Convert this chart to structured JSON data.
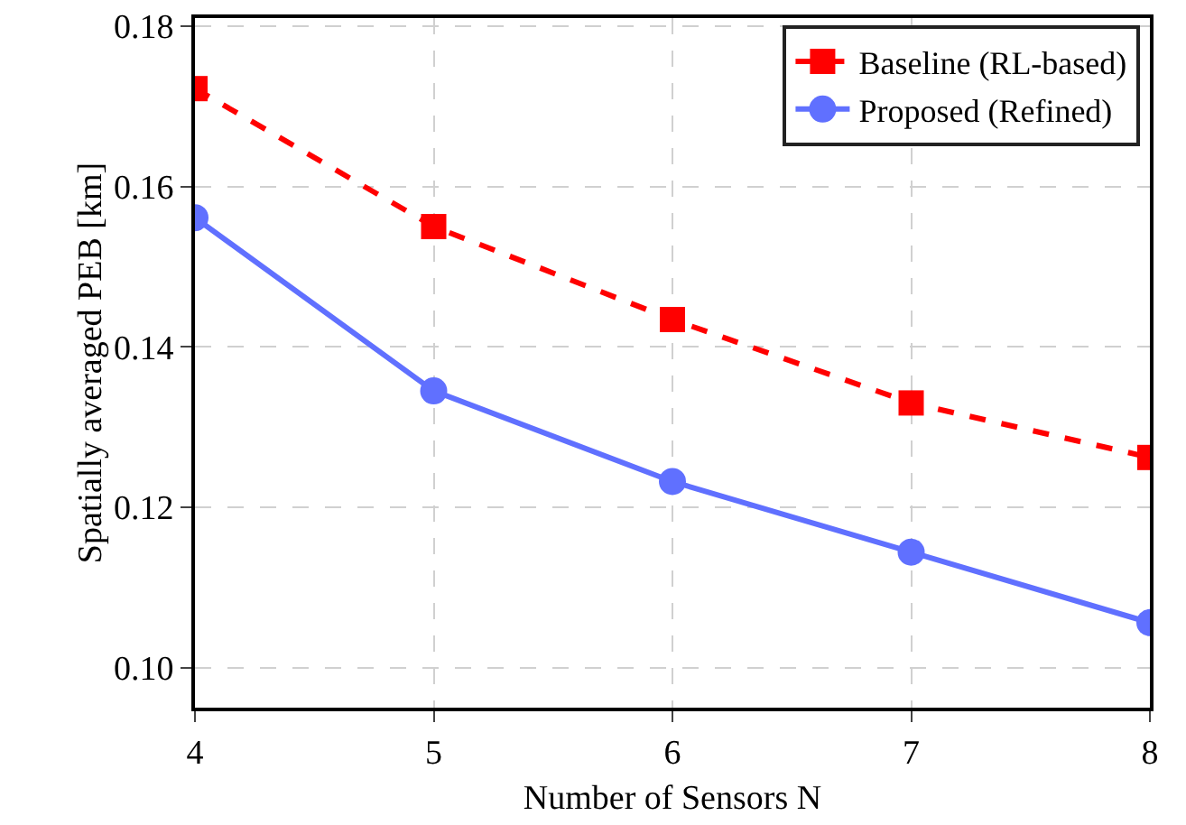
{
  "chart_data": {
    "type": "line",
    "xlabel": "Number of Sensors N",
    "ylabel": "Spatially averaged PEB [km]",
    "x": [
      4,
      5,
      6,
      7,
      8
    ],
    "series": [
      {
        "name": "Baseline (RL-based)",
        "color": "#ff0000",
        "marker": "square",
        "line_style": "dashed",
        "values": [
          0.1722,
          0.155,
          0.1434,
          0.133,
          0.1262
        ]
      },
      {
        "name": "Proposed (Refined)",
        "color": "#6070ff",
        "marker": "circle",
        "line_style": "solid",
        "values": [
          0.1561,
          0.1345,
          0.1232,
          0.1144,
          0.1056
        ]
      }
    ],
    "xlim": [
      4,
      8
    ],
    "xticks": [
      4,
      5,
      6,
      7,
      8
    ],
    "ylim": [
      0.095,
      0.181
    ],
    "yticks": [
      {
        "value": 0.1,
        "label": "0.10"
      },
      0.12,
      0.14,
      0.16,
      0.18
    ],
    "grid": true,
    "legend": "top right"
  }
}
